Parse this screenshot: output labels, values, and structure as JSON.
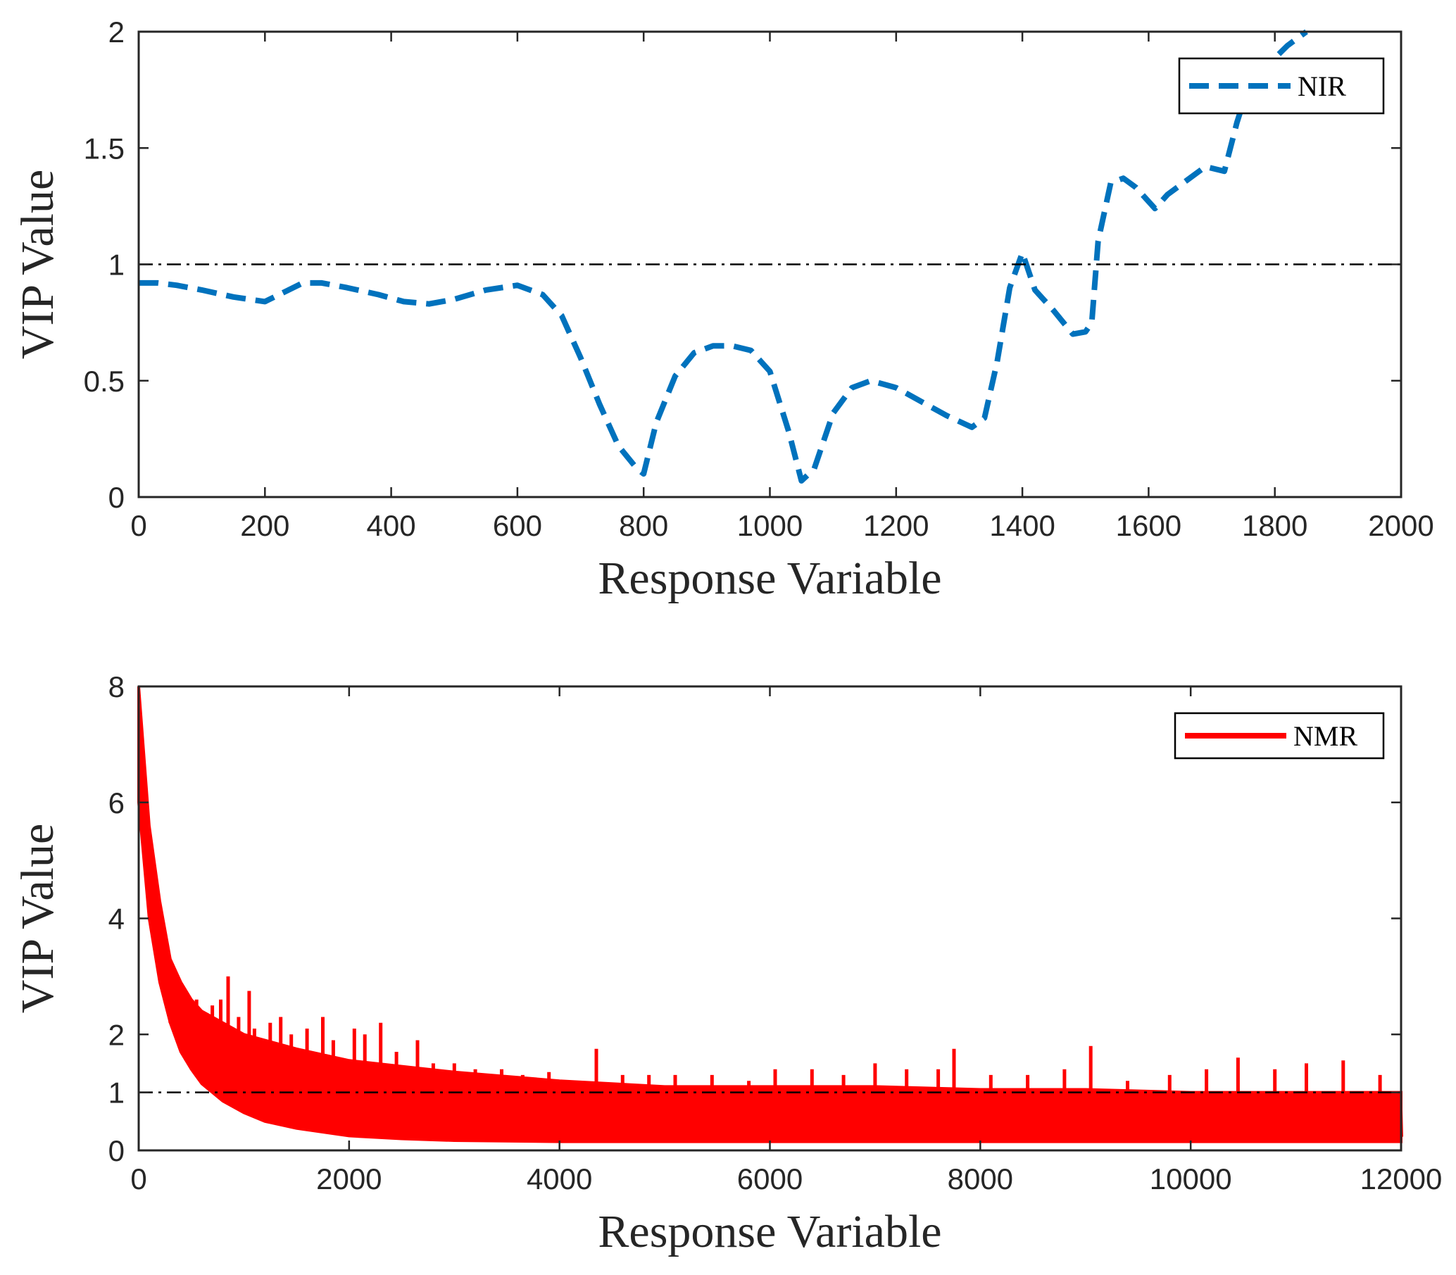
{
  "chart_data": [
    {
      "type": "line",
      "xlabel": "Response Variable",
      "ylabel": "VIP Value",
      "xlim": [
        0,
        2000
      ],
      "ylim": [
        0,
        2
      ],
      "xticks": [
        "0",
        "200",
        "400",
        "600",
        "800",
        "1000",
        "1200",
        "1400",
        "1600",
        "1800",
        "2000"
      ],
      "yticks": [
        "0",
        "0.5",
        "1",
        "1.5",
        "2"
      ],
      "threshold": 1,
      "legend": "top-right",
      "series": [
        {
          "name": "NIR",
          "color": "#0072BD",
          "style": "dashed",
          "x": [
            0,
            30,
            60,
            100,
            150,
            200,
            230,
            260,
            290,
            330,
            380,
            420,
            460,
            500,
            550,
            600,
            640,
            670,
            700,
            730,
            760,
            790,
            800,
            820,
            850,
            880,
            910,
            940,
            970,
            1000,
            1030,
            1050,
            1070,
            1100,
            1130,
            1160,
            1200,
            1240,
            1280,
            1320,
            1340,
            1360,
            1380,
            1400,
            1420,
            1450,
            1480,
            1500,
            1510,
            1520,
            1540,
            1560,
            1580,
            1610,
            1630,
            1660,
            1690,
            1720,
            1740,
            1760,
            1790,
            1820,
            1850
          ],
          "y": [
            0.92,
            0.92,
            0.91,
            0.89,
            0.86,
            0.84,
            0.88,
            0.92,
            0.92,
            0.9,
            0.87,
            0.84,
            0.83,
            0.85,
            0.89,
            0.91,
            0.87,
            0.78,
            0.6,
            0.4,
            0.22,
            0.12,
            0.1,
            0.32,
            0.52,
            0.62,
            0.65,
            0.65,
            0.63,
            0.54,
            0.28,
            0.07,
            0.12,
            0.36,
            0.47,
            0.5,
            0.47,
            0.41,
            0.35,
            0.3,
            0.34,
            0.58,
            0.9,
            1.05,
            0.89,
            0.8,
            0.7,
            0.71,
            0.75,
            1.1,
            1.35,
            1.37,
            1.33,
            1.24,
            1.3,
            1.36,
            1.42,
            1.4,
            1.61,
            1.78,
            1.86,
            1.94,
            2.0
          ]
        }
      ]
    },
    {
      "type": "line",
      "xlabel": "Response Variable",
      "ylabel": "VIP Value",
      "xlim": [
        0,
        12000
      ],
      "ylim": [
        0,
        8
      ],
      "xticks": [
        "0",
        "2000",
        "4000",
        "6000",
        "8000",
        "10000",
        "12000"
      ],
      "yticks": [
        "0",
        "1",
        "2",
        "4",
        "6",
        "8"
      ],
      "ytick_values": [
        0,
        1,
        2,
        4,
        6,
        8
      ],
      "threshold": 1,
      "legend": "top-right",
      "series": [
        {
          "name": "NMR",
          "color": "#FF0000",
          "style": "solid",
          "envelope_x": [
            0,
            100,
            200,
            300,
            400,
            500,
            600,
            800,
            1000,
            1200,
            1500,
            2000,
            2500,
            3000,
            4000,
            5000,
            6000,
            7000,
            8000,
            9000,
            10000,
            11000,
            12000
          ],
          "envelope_upper": [
            8.0,
            5.6,
            4.3,
            3.3,
            2.9,
            2.6,
            2.4,
            2.2,
            2.0,
            1.9,
            1.75,
            1.55,
            1.45,
            1.35,
            1.2,
            1.1,
            1.1,
            1.1,
            1.05,
            1.05,
            1.0,
            1.0,
            1.0
          ],
          "envelope_lower": [
            6.0,
            4.0,
            2.9,
            2.2,
            1.7,
            1.4,
            1.15,
            0.85,
            0.65,
            0.5,
            0.38,
            0.25,
            0.2,
            0.17,
            0.15,
            0.15,
            0.15,
            0.15,
            0.15,
            0.15,
            0.15,
            0.15,
            0.15
          ],
          "spikes_x": [
            300,
            450,
            550,
            700,
            780,
            850,
            950,
            1050,
            1100,
            1250,
            1350,
            1450,
            1600,
            1750,
            1850,
            2050,
            2150,
            2300,
            2450,
            2650,
            2800,
            3000,
            3200,
            3450,
            3650,
            3900,
            4200,
            4350,
            4600,
            4850,
            5100,
            5450,
            5800,
            6050,
            6400,
            6700,
            7000,
            7300,
            7600,
            7750,
            8100,
            8450,
            8800,
            9050,
            9400,
            9800,
            10150,
            10450,
            10800,
            11100,
            11450,
            11800
          ],
          "spikes_y": [
            2.9,
            2.6,
            2.6,
            2.5,
            2.6,
            3.0,
            2.3,
            2.75,
            2.1,
            2.2,
            2.3,
            2.0,
            2.1,
            2.3,
            1.9,
            2.1,
            2.0,
            2.2,
            1.7,
            1.9,
            1.5,
            1.5,
            1.4,
            1.4,
            1.3,
            1.35,
            1.2,
            1.75,
            1.3,
            1.3,
            1.3,
            1.3,
            1.2,
            1.4,
            1.4,
            1.3,
            1.5,
            1.4,
            1.4,
            1.75,
            1.3,
            1.3,
            1.4,
            1.8,
            1.2,
            1.3,
            1.4,
            1.6,
            1.4,
            1.5,
            1.55,
            1.3
          ]
        }
      ]
    }
  ]
}
